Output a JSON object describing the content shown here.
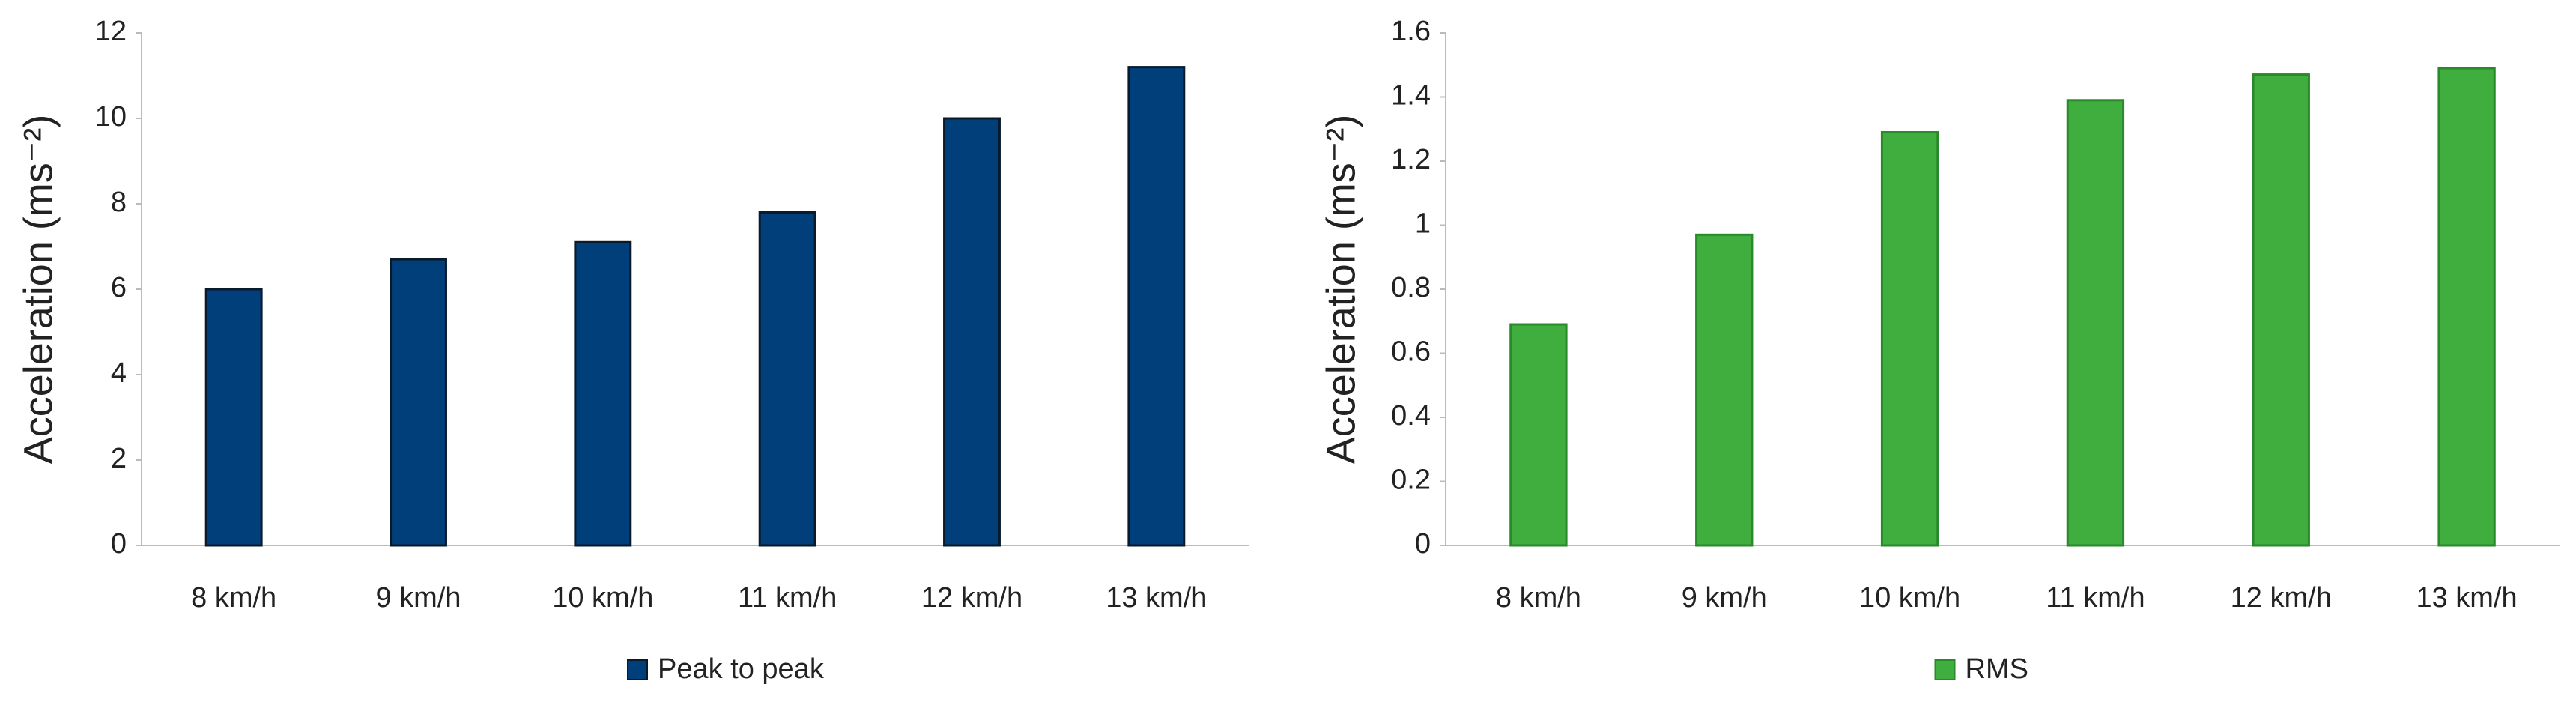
{
  "chart_data": [
    {
      "type": "bar",
      "y_label": "Acceleration (ms⁻²)",
      "categories": [
        "8 km/h",
        "9 km/h",
        "10 km/h",
        "11 km/h",
        "12 km/h",
        "13 km/h"
      ],
      "series": [
        {
          "name": "Peak to peak",
          "color": "#003f7a",
          "values": [
            6.0,
            6.7,
            7.1,
            7.8,
            10.0,
            11.2
          ]
        }
      ],
      "ylim": [
        0,
        12
      ],
      "yticks": [
        0,
        2,
        4,
        6,
        8,
        10,
        12
      ]
    },
    {
      "type": "bar",
      "y_label": "Acceleration (ms⁻²)",
      "categories": [
        "8 km/h",
        "9 km/h",
        "10 km/h",
        "11 km/h",
        "12 km/h",
        "13 km/h"
      ],
      "series": [
        {
          "name": "RMS",
          "color": "#3fae3f",
          "values": [
            0.69,
            0.97,
            1.29,
            1.39,
            1.47,
            1.49
          ]
        }
      ],
      "ylim": [
        0,
        1.6
      ],
      "yticks": [
        0,
        0.2,
        0.4,
        0.6,
        0.8,
        1,
        1.2,
        1.4,
        1.6
      ]
    }
  ]
}
